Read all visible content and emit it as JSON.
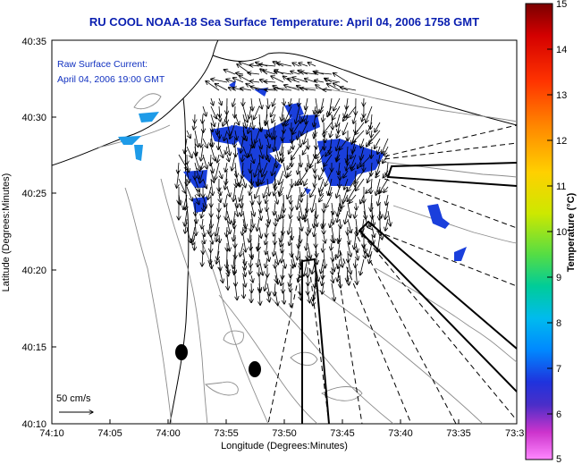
{
  "title": "RU COOL  NOAA-18  Sea Surface Temperature:  April 04, 2006 1758 GMT",
  "inset_label": {
    "line1": "Raw Surface Current:",
    "line2": "April 04, 2006 19:00 GMT"
  },
  "scale_label": "50 cm/s",
  "x_axis": {
    "title": "Longitude (Degrees:Minutes)",
    "ticks": [
      "74:10",
      "74:05",
      "74:00",
      "73:55",
      "73:50",
      "73:45",
      "73:40",
      "73:35",
      "73:3"
    ]
  },
  "y_axis": {
    "title": "Latitude (Degrees:Minutes)",
    "ticks": [
      "40:35",
      "40:30",
      "40:25",
      "40:20",
      "40:15",
      "40:10"
    ]
  },
  "colorbar": {
    "title": "Temperature (°C)",
    "ticks": [
      "15",
      "14",
      "13",
      "12",
      "11",
      "10",
      "9",
      "8",
      "7",
      "6",
      "5"
    ],
    "colors": [
      "#7a0000",
      "#d40000",
      "#ff3300",
      "#ff8800",
      "#ffcc00",
      "#ccee00",
      "#66dd33",
      "#00cc88",
      "#00bbee",
      "#0099ff",
      "#0044ee",
      "#2222cc",
      "#6633cc",
      "#cc33cc",
      "#ff66ff"
    ]
  },
  "colors": {
    "title": "#0a1fb0",
    "sst_patch": "#1a3fdc",
    "sst_patch_light": "#1e9be8",
    "arrows": "#000000",
    "contours": "#8c8c8c"
  }
}
